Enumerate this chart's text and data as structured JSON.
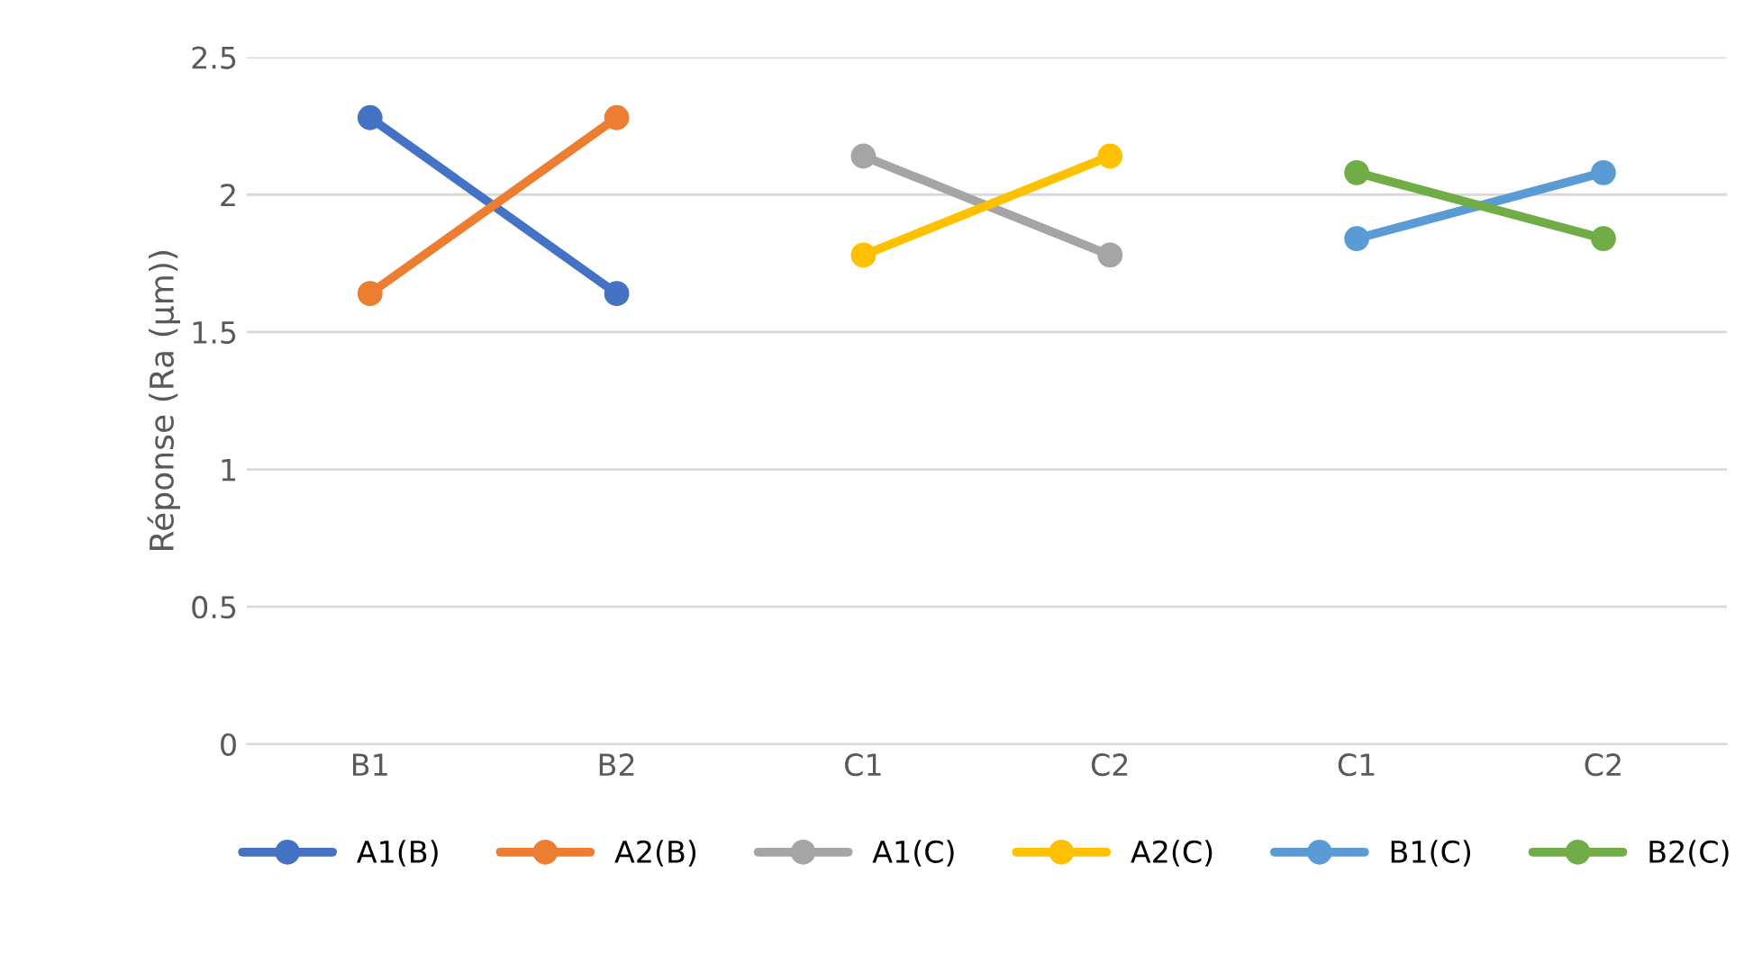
{
  "chart_data": {
    "type": "line",
    "ylabel": "Réponse (Ra (µm))",
    "categories": [
      "B1",
      "B2",
      "C1",
      "C2",
      "C1",
      "C2"
    ],
    "ylim": [
      0,
      2.5
    ],
    "yticks": [
      0,
      0.5,
      1,
      1.5,
      2,
      2.5
    ],
    "grid": "y",
    "legend": "bottom",
    "marker": "circle",
    "line_style": "solid",
    "series": [
      {
        "name": "A1(B)",
        "color": "#4472c4",
        "values": [
          2.28,
          1.64,
          null,
          null,
          null,
          null
        ]
      },
      {
        "name": "A2(B)",
        "color": "#ed7d31",
        "values": [
          1.64,
          2.28,
          null,
          null,
          null,
          null
        ]
      },
      {
        "name": "A1(C)",
        "color": "#a5a5a5",
        "values": [
          null,
          null,
          2.14,
          1.78,
          null,
          null
        ]
      },
      {
        "name": "A2(C)",
        "color": "#ffc000",
        "values": [
          null,
          null,
          1.78,
          2.14,
          null,
          null
        ]
      },
      {
        "name": "B1(C)",
        "color": "#5b9bd5",
        "values": [
          null,
          null,
          null,
          null,
          1.84,
          2.08
        ]
      },
      {
        "name": "B2(C)",
        "color": "#70ad47",
        "values": [
          null,
          null,
          null,
          null,
          2.08,
          1.84
        ]
      }
    ]
  }
}
